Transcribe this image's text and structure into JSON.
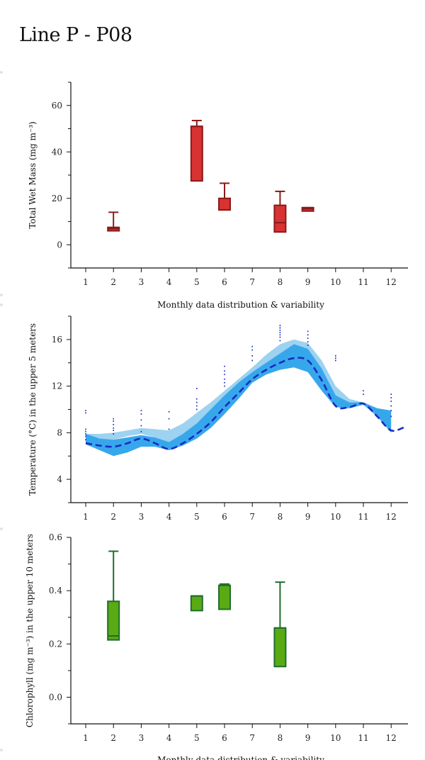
{
  "page": {
    "title": "Line P - P08"
  },
  "chart_data": [
    {
      "type": "box",
      "ylabel": "Total Wet Mass (mg m⁻³)",
      "xlabel": "Monthly data distribution & variability",
      "x_ticks": [
        "1",
        "2",
        "3",
        "4",
        "5",
        "6",
        "7",
        "8",
        "9",
        "10",
        "11",
        "12"
      ],
      "y_ticks": [
        0,
        20,
        40,
        60
      ],
      "ylim": [
        -10,
        70
      ],
      "color": "#d83232",
      "stroke": "#8a1a1a",
      "boxes": [
        {
          "month": 2,
          "whisker_low": 6,
          "q1": 6,
          "median": 7,
          "q3": 7.5,
          "whisker_high": 14
        },
        {
          "month": 5,
          "whisker_low": 27.5,
          "q1": 27.5,
          "median": 51,
          "q3": 51,
          "whisker_high": 53.5
        },
        {
          "month": 6,
          "whisker_low": 15,
          "q1": 15,
          "median": 15,
          "q3": 20,
          "whisker_high": 26.5
        },
        {
          "month": 8,
          "whisker_low": 5.5,
          "q1": 5.5,
          "median": 9.5,
          "q3": 17,
          "whisker_high": 23
        },
        {
          "month": 9,
          "whisker_low": 14.5,
          "q1": 14.5,
          "median": 15.5,
          "q3": 16,
          "whisker_high": 16
        }
      ]
    },
    {
      "type": "line",
      "ylabel": "Temperature (°C) in the upper 5 meters",
      "x_ticks": [
        "1",
        "2",
        "3",
        "4",
        "5",
        "6",
        "7",
        "8",
        "9",
        "10",
        "11",
        "12"
      ],
      "y_ticks": [
        4,
        8,
        12,
        16
      ],
      "ylim": [
        2,
        18
      ],
      "series": [
        {
          "style": "dashed",
          "color": "#1a2bc0",
          "x": [
            1,
            1.5,
            2,
            2.5,
            3,
            3.5,
            4,
            4.5,
            5,
            5.5,
            6,
            6.5,
            7,
            7.5,
            8,
            8.5,
            9,
            9.5,
            10,
            10.5,
            11,
            11.5,
            12,
            12.5
          ],
          "y": [
            7.1,
            6.9,
            6.8,
            7.1,
            7.5,
            7.1,
            6.6,
            7.1,
            7.9,
            8.9,
            10.2,
            11.4,
            12.6,
            13.4,
            14.0,
            14.4,
            14.2,
            12.5,
            10.3,
            10.2,
            10.5,
            9.4,
            8.2,
            8.5
          ]
        }
      ],
      "bands": [
        {
          "color": "#9dd2f0",
          "x": [
            1,
            1.5,
            2,
            2.5,
            3,
            3.5,
            4,
            4.5,
            5,
            5.5,
            6,
            6.5,
            7,
            7.5,
            8,
            8.5,
            9,
            9.5,
            10,
            10.5,
            11,
            11.5,
            12
          ],
          "upper": [
            7.9,
            7.9,
            8.0,
            8.2,
            8.4,
            8.3,
            8.2,
            8.8,
            9.7,
            10.6,
            11.6,
            12.6,
            13.6,
            14.7,
            15.6,
            16.0,
            15.7,
            14.2,
            12.0,
            10.9,
            10.6,
            10.1,
            9.9
          ],
          "lower": [
            7.3,
            7.3,
            7.4,
            7.7,
            7.9,
            7.6,
            7.2,
            7.9,
            8.7,
            9.6,
            10.6,
            11.7,
            12.7,
            13.6,
            14.2,
            14.5,
            14.4,
            13.0,
            10.8,
            10.4,
            10.4,
            9.8,
            9.6
          ]
        },
        {
          "color": "#37a7ec",
          "x": [
            1,
            1.5,
            2,
            2.5,
            3,
            3.5,
            4,
            4.5,
            5,
            5.5,
            6,
            6.5,
            7,
            7.5,
            8,
            8.5,
            9,
            9.5,
            10,
            10.5,
            11,
            11.5,
            12
          ],
          "upper": [
            7.9,
            7.5,
            7.4,
            7.6,
            7.8,
            7.6,
            7.2,
            7.9,
            8.8,
            10.0,
            11.2,
            12.3,
            13.2,
            14.0,
            14.8,
            15.6,
            15.2,
            13.5,
            11.2,
            10.6,
            10.6,
            10.1,
            9.9
          ],
          "lower": [
            7.0,
            6.5,
            6.0,
            6.3,
            6.8,
            6.8,
            6.5,
            6.9,
            7.5,
            8.4,
            9.6,
            10.9,
            12.3,
            13.0,
            13.4,
            13.6,
            13.2,
            11.6,
            10.2,
            10.1,
            10.4,
            9.4,
            8.0
          ]
        }
      ],
      "scatter": {
        "color": "#1a2bc0",
        "points": [
          [
            1,
            7.4
          ],
          [
            1,
            7.7
          ],
          [
            1,
            7.9
          ],
          [
            1,
            8.1
          ],
          [
            1,
            8.3
          ],
          [
            1,
            9.7
          ],
          [
            1,
            9.9
          ],
          [
            2,
            7.9
          ],
          [
            2,
            8.2
          ],
          [
            2,
            8.4
          ],
          [
            2,
            8.7
          ],
          [
            2,
            9.0
          ],
          [
            2,
            9.2
          ],
          [
            3,
            8.1
          ],
          [
            3,
            8.6
          ],
          [
            3,
            9.1
          ],
          [
            3,
            9.6
          ],
          [
            3,
            9.9
          ],
          [
            4,
            8.3
          ],
          [
            4,
            9.2
          ],
          [
            4,
            9.8
          ],
          [
            5,
            10.0
          ],
          [
            5,
            10.3
          ],
          [
            5,
            10.6
          ],
          [
            5,
            10.9
          ],
          [
            5,
            11.8
          ],
          [
            6,
            12.0
          ],
          [
            6,
            12.3
          ],
          [
            6,
            12.6
          ],
          [
            6,
            13.0
          ],
          [
            6,
            13.3
          ],
          [
            6,
            13.7
          ],
          [
            7,
            14.2
          ],
          [
            7,
            14.6
          ],
          [
            7,
            15.1
          ],
          [
            7,
            15.4
          ],
          [
            8,
            15.9
          ],
          [
            8,
            16.2
          ],
          [
            8,
            16.4
          ],
          [
            8,
            16.6
          ],
          [
            8,
            16.8
          ],
          [
            8,
            17.0
          ],
          [
            8,
            17.2
          ],
          [
            9,
            15.5
          ],
          [
            9,
            15.8
          ],
          [
            9,
            16.1
          ],
          [
            9,
            16.4
          ],
          [
            9,
            16.7
          ],
          [
            10,
            14.2
          ],
          [
            10,
            14.4
          ],
          [
            10,
            14.6
          ],
          [
            11,
            11.3
          ],
          [
            11,
            11.6
          ],
          [
            12,
            9.4
          ],
          [
            12,
            9.9
          ],
          [
            12,
            10.3
          ],
          [
            12,
            10.7
          ],
          [
            12,
            11.0
          ],
          [
            12,
            11.3
          ]
        ]
      }
    },
    {
      "type": "box",
      "ylabel": "Chlorophyll (mg m⁻³) in the upper 10 meters",
      "xlabel": "Monthly data distribution & variability",
      "x_ticks": [
        "1",
        "2",
        "3",
        "4",
        "5",
        "6",
        "7",
        "8",
        "9",
        "10",
        "11",
        "12"
      ],
      "y_ticks": [
        "0.0",
        "0.2",
        "0.4",
        "0.6"
      ],
      "y_tick_values": [
        0,
        0.2,
        0.4,
        0.6
      ],
      "ylim": [
        -0.1,
        0.6
      ],
      "color": "#5aaa14",
      "stroke": "#1f6e2e",
      "boxes": [
        {
          "month": 2,
          "whisker_low": 0.215,
          "q1": 0.215,
          "median": 0.23,
          "q3": 0.36,
          "whisker_high": 0.548
        },
        {
          "month": 5,
          "whisker_low": 0.325,
          "q1": 0.325,
          "median": 0.38,
          "q3": 0.38,
          "whisker_high": 0.38
        },
        {
          "month": 6,
          "whisker_low": 0.33,
          "q1": 0.33,
          "median": 0.42,
          "q3": 0.42,
          "whisker_high": 0.425
        },
        {
          "month": 8,
          "whisker_low": 0.115,
          "q1": 0.115,
          "median": 0.26,
          "q3": 0.26,
          "whisker_high": 0.432
        }
      ]
    }
  ]
}
